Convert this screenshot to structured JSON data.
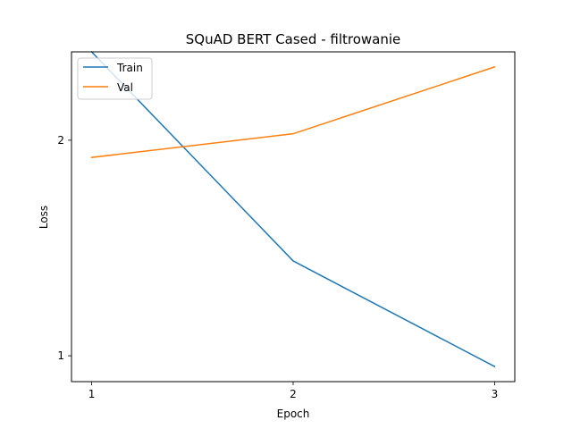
{
  "chart_data": {
    "type": "line",
    "title": "SQuAD BERT Cased - filtrowanie",
    "xlabel": "Epoch",
    "ylabel": "Loss",
    "x": [
      1,
      2,
      3
    ],
    "xticks": [
      "1",
      "2",
      "3"
    ],
    "yticks": [
      "1",
      "2"
    ],
    "xlim": [
      0.9,
      3.1
    ],
    "ylim": [
      0.88,
      2.41
    ],
    "grid": false,
    "legend_position": "upper-left",
    "series": [
      {
        "name": "Train",
        "color": "#1f77b4",
        "values": [
          2.41,
          1.44,
          0.95
        ]
      },
      {
        "name": "Val",
        "color": "#ff7f0e",
        "values": [
          1.92,
          2.03,
          2.34
        ]
      }
    ]
  }
}
